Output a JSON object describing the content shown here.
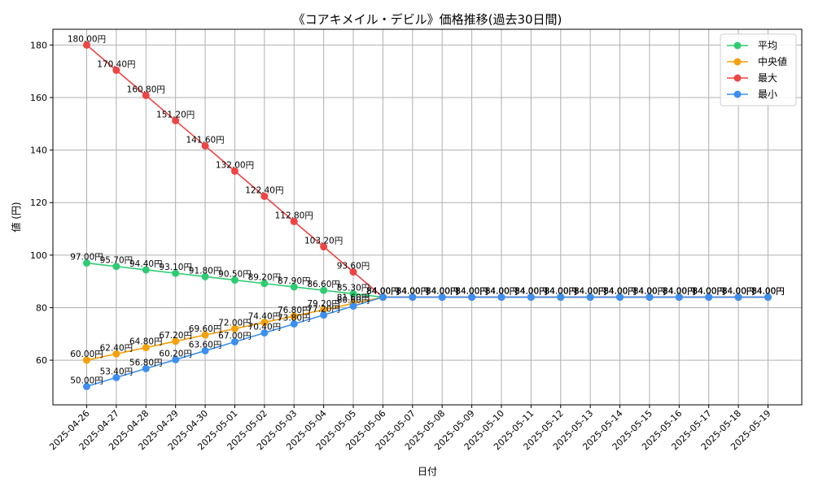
{
  "chart_data": {
    "type": "line",
    "title": "《コアキメイル・デビル》価格推移(過去30日間)",
    "xlabel": "日付",
    "ylabel": "値 (円)",
    "ylim": [
      43,
      186
    ],
    "yticks": [
      60,
      80,
      100,
      120,
      140,
      160,
      180
    ],
    "grid": true,
    "legend_position": "top-right",
    "value_suffix": "円",
    "categories": [
      "2025-04-26",
      "2025-04-27",
      "2025-04-28",
      "2025-04-29",
      "2025-04-30",
      "2025-05-01",
      "2025-05-02",
      "2025-05-03",
      "2025-05-04",
      "2025-05-05",
      "2025-05-06",
      "2025-05-07",
      "2025-05-08",
      "2025-05-09",
      "2025-05-10",
      "2025-05-11",
      "2025-05-12",
      "2025-05-13",
      "2025-05-14",
      "2025-05-15",
      "2025-05-16",
      "2025-05-17",
      "2025-05-18",
      "2025-05-19"
    ],
    "series": [
      {
        "name": "平均",
        "color": "#2ecc71",
        "values": [
          97.0,
          95.7,
          94.4,
          93.1,
          91.8,
          90.5,
          89.2,
          87.9,
          86.6,
          85.3,
          84.0,
          84.0,
          84.0,
          84.0,
          84.0,
          84.0,
          84.0,
          84.0,
          84.0,
          84.0,
          84.0,
          84.0,
          84.0,
          84.0
        ]
      },
      {
        "name": "中央値",
        "color": "#f5a10a",
        "values": [
          60.0,
          62.4,
          64.8,
          67.2,
          69.6,
          72.0,
          74.4,
          76.8,
          79.2,
          81.6,
          84.0,
          84.0,
          84.0,
          84.0,
          84.0,
          84.0,
          84.0,
          84.0,
          84.0,
          84.0,
          84.0,
          84.0,
          84.0,
          84.0
        ]
      },
      {
        "name": "最大",
        "color": "#ef4444",
        "values": [
          180.0,
          170.4,
          160.8,
          151.2,
          141.6,
          132.0,
          122.4,
          112.8,
          103.2,
          93.6,
          84.0,
          84.0,
          84.0,
          84.0,
          84.0,
          84.0,
          84.0,
          84.0,
          84.0,
          84.0,
          84.0,
          84.0,
          84.0,
          84.0
        ]
      },
      {
        "name": "最小",
        "color": "#3b8ff0",
        "values": [
          50.0,
          53.4,
          56.8,
          60.2,
          63.6,
          67.0,
          70.4,
          73.8,
          77.2,
          80.6,
          84.0,
          84.0,
          84.0,
          84.0,
          84.0,
          84.0,
          84.0,
          84.0,
          84.0,
          84.0,
          84.0,
          84.0,
          84.0,
          84.0
        ]
      }
    ]
  }
}
